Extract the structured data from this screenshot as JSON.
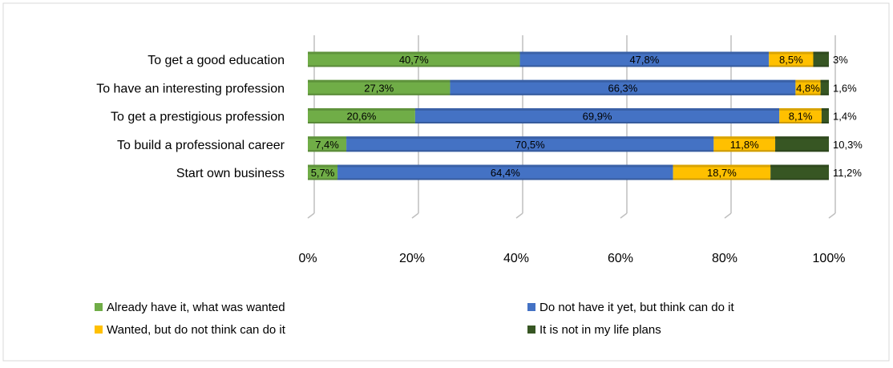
{
  "chart_data": {
    "type": "bar",
    "orientation": "horizontal",
    "stacked": "percent",
    "categories": [
      "To get a good education",
      "To have an interesting profession",
      "To get a prestigious profession",
      "To build a professional career",
      "Start own business"
    ],
    "series": [
      {
        "name": "Already have it, what was wanted",
        "color": "#70AD47",
        "values": [
          40.7,
          27.3,
          20.6,
          7.4,
          5.7
        ],
        "labels": [
          "40,7%",
          "27,3%",
          "20,6%",
          "7,4%",
          "5,7%"
        ]
      },
      {
        "name": "Do not have it yet, but think can do it",
        "color": "#4472C4",
        "values": [
          47.8,
          66.3,
          69.9,
          70.5,
          64.4
        ],
        "labels": [
          "47,8%",
          "66,3%",
          "69,9%",
          "70,5%",
          "64,4%"
        ]
      },
      {
        "name": "Wanted, but do not think can do it",
        "color": "#FFC000",
        "values": [
          8.5,
          4.8,
          8.1,
          11.8,
          18.7
        ],
        "labels": [
          "8,5%",
          "4,8%",
          "8,1%",
          "11,8%",
          "18,7%"
        ]
      },
      {
        "name": "It is not in my life plans",
        "color": "#375623",
        "values": [
          3,
          1.6,
          1.4,
          10.3,
          11.2
        ],
        "labels": [
          "3%",
          "1,6%",
          "1,4%",
          "10,3%",
          "11,2%"
        ]
      }
    ],
    "x_ticks": [
      "0%",
      "20%",
      "40%",
      "60%",
      "80%",
      "100%"
    ],
    "xlim": [
      0,
      100
    ],
    "grid": true,
    "legend_position": "bottom"
  }
}
